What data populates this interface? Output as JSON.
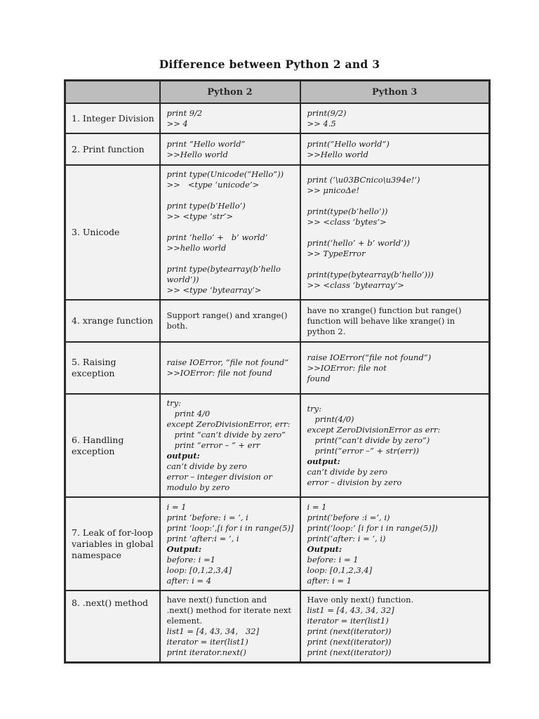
{
  "page": {
    "title": "Difference between Python 2 and 3"
  },
  "colors": {
    "page_bg": "#ffffff",
    "header_bg": "#bdbdbd",
    "cell_bg": "#f2f2f2",
    "border": "#2b2b2b",
    "text": "#1c1c1c"
  },
  "table": {
    "headers": [
      "",
      "Python 2",
      "Python 3"
    ],
    "rows": [
      {
        "label": "1. Integer Division",
        "py2": [
          {
            "t": "print 9/2"
          },
          {
            "t": ">> 4"
          }
        ],
        "py3": [
          {
            "t": "print(9/2)"
          },
          {
            "t": ">> 4.5"
          }
        ]
      },
      {
        "label": "2. Print function",
        "py2": [
          {
            "t": "print “Hello world”"
          },
          {
            "t": ">>Hello world"
          }
        ],
        "py3": [
          {
            "t": "print(“Hello world”)"
          },
          {
            "t": ">>Hello world"
          }
        ]
      },
      {
        "label": "3. Unicode",
        "py2": [
          {
            "t": "print type(Unicode(“Hello”))"
          },
          {
            "t": ">>   <type ‘unicode’>"
          },
          {
            "t": ""
          },
          {
            "t": "print type(b’Hello’)"
          },
          {
            "t": ">> <type ‘str’>"
          },
          {
            "t": ""
          },
          {
            "t": "print ‘hello’ +   b’ world’"
          },
          {
            "t": ">>hello world"
          },
          {
            "t": ""
          },
          {
            "t": "print type(bytearray(b’hello world’))"
          },
          {
            "t": ">> <type ‘bytearray’>"
          }
        ],
        "py3": [
          {
            "t": "print (‘\\u03BCnico\\u394e!’)"
          },
          {
            "t": ">> μnicoΔe!"
          },
          {
            "t": ""
          },
          {
            "t": "print(type(b’hello’))"
          },
          {
            "t": ">> <class ‘bytes’>"
          },
          {
            "t": ""
          },
          {
            "t": "print(‘hello’ + b’ world’))"
          },
          {
            "t": ">> TypeError"
          },
          {
            "t": ""
          },
          {
            "t": "print(type(bytearray(b’hello’)))"
          },
          {
            "t": ">> <class ‘bytearray’>"
          }
        ]
      },
      {
        "label": "4. xrange function",
        "py2": [
          {
            "t": "Support range() and xrange() both.",
            "s": "p"
          }
        ],
        "py3": [
          {
            "t": "have no xrange() function but range() function will behave like xrange() in python 2.",
            "s": "p"
          }
        ]
      },
      {
        "label": "5. Raising exception",
        "py2": [
          {
            "t": "raise IOError, “file not found”"
          },
          {
            "t": ">>IOError: file not found"
          }
        ],
        "py3": [
          {
            "t": "raise IOError(“file not found”)"
          },
          {
            "t": ">>IOError: file not"
          },
          {
            "t": "found"
          }
        ]
      },
      {
        "label": "6. Handling exception",
        "py2": [
          {
            "t": "try:"
          },
          {
            "t": "   print 4/0"
          },
          {
            "t": "except ZeroDivisionError, err:"
          },
          {
            "t": "   print “can’t divide by zero”"
          },
          {
            "t": "   print “error – ” + err"
          },
          {
            "t": "output:",
            "s": "bi"
          },
          {
            "t": "can’t divide by zero"
          },
          {
            "t": "error – integer division or"
          },
          {
            "t": "modulo by zero"
          }
        ],
        "py3": [
          {
            "t": "try:"
          },
          {
            "t": "   print(4/0)"
          },
          {
            "t": "except ZeroDivisionError as err:"
          },
          {
            "t": "   print(“can’t divide by zero”)"
          },
          {
            "t": "   print(“error –” + str(err))"
          },
          {
            "t": "output:",
            "s": "bi"
          },
          {
            "t": "can’t divide by zero"
          },
          {
            "t": "error – division by zero"
          }
        ]
      },
      {
        "label": "7. Leak of for-loop variables in global namespace",
        "py2": [
          {
            "t": "i = 1"
          },
          {
            "t": "print ‘before: i = ’, i"
          },
          {
            "t": "print ‘loop:’,[i for i in range(5)]"
          },
          {
            "t": "print ‘after:i = ’, i"
          },
          {
            "t": "Output:",
            "s": "bi"
          },
          {
            "t": "before: i =1"
          },
          {
            "t": "loop: [0,1,2,3,4]"
          },
          {
            "t": "after: i = 4"
          }
        ],
        "py3": [
          {
            "t": "i = 1"
          },
          {
            "t": "print(‘before :i =’, i)"
          },
          {
            "t": "print(‘loop:’ [i for i in range(5)])"
          },
          {
            "t": "print(‘after: i = ’, i)"
          },
          {
            "t": "Output:",
            "s": "bi"
          },
          {
            "t": "before: i = 1"
          },
          {
            "t": "loop: [0,1,2,3,4]"
          },
          {
            "t": "after: i = 1"
          }
        ]
      },
      {
        "label": "8. .next() method",
        "py2": [
          {
            "t": "have next() function and .next() method for iterate next element.",
            "s": "p"
          },
          {
            "t": "list1 = [4, 43, 34,   32]"
          },
          {
            "t": "iterator = iter(list1)"
          },
          {
            "t": "print iterator.next()"
          }
        ],
        "py3": [
          {
            "t": "Have only next() function.",
            "s": "p"
          },
          {
            "t": "list1 = [4, 43, 34, 32]"
          },
          {
            "t": "iterator = iter(list1)"
          },
          {
            "t": "print (next(iterator))"
          },
          {
            "t": "print (next(iterator))"
          },
          {
            "t": "print (next(iterator))"
          }
        ]
      }
    ]
  }
}
